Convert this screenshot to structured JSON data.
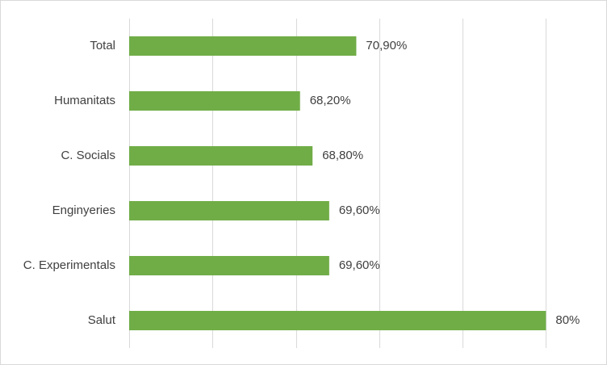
{
  "chart_data": {
    "type": "bar",
    "orientation": "horizontal",
    "categories": [
      "Total",
      "Humanitats",
      "C. Socials",
      "Enginyeries",
      "C. Experimentals",
      "Salut"
    ],
    "values": [
      70.9,
      68.2,
      68.8,
      69.6,
      69.6,
      80
    ],
    "data_labels": [
      "70,90%",
      "68,20%",
      "68,80%",
      "69,60%",
      "69,60%",
      "80%"
    ],
    "xlim": [
      60,
      82
    ],
    "grid": true,
    "title": "",
    "xlabel": "",
    "ylabel": "",
    "colors": {
      "bar": "#70ad47",
      "grid": "#d9d9d9",
      "text": "#404040"
    }
  }
}
